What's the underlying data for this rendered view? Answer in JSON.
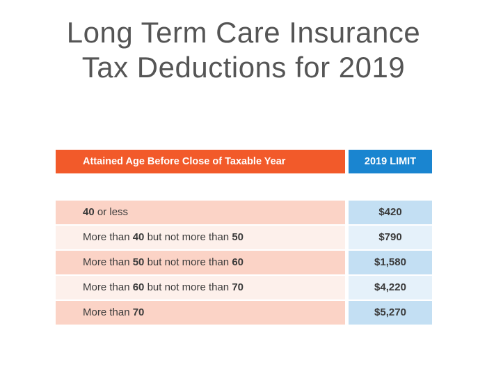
{
  "title": {
    "line1": "Long Term Care Insurance",
    "line2": "Tax Deductions for 2019"
  },
  "table": {
    "headers": {
      "age": "Attained Age Before Close of Taxable Year",
      "limit": "2019 LIMIT"
    },
    "rows": [
      {
        "age": [
          "40",
          " or less"
        ],
        "limit": "$420"
      },
      {
        "age": [
          "More than ",
          "40",
          " but not more than ",
          "50"
        ],
        "limit": "$790"
      },
      {
        "age": [
          "More than ",
          "50",
          " but not more than ",
          "60"
        ],
        "limit": "$1,580"
      },
      {
        "age": [
          "More than ",
          "60",
          " but not more than ",
          "70"
        ],
        "limit": "$4,220"
      },
      {
        "age": [
          "More than ",
          "70"
        ],
        "limit": "$5,270"
      }
    ]
  },
  "colors": {
    "header_age": "#f25a2a",
    "header_limit": "#1a85d0",
    "row_age_dark": "#fbd3c6",
    "row_age_light": "#fdf0eb",
    "row_limit_dark": "#c3dff3",
    "row_limit_light": "#e5f1fa"
  }
}
